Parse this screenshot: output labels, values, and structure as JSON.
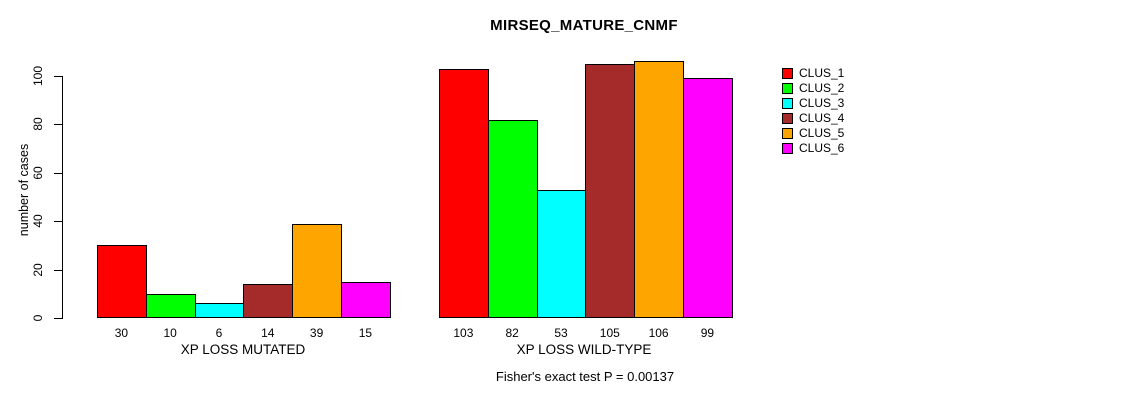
{
  "chart_data": {
    "type": "bar",
    "title": "MIRSEQ_MATURE_CNMF",
    "ylabel": "number of cases",
    "footer": "Fisher's exact test P = 0.00137",
    "ylim": [
      0,
      100
    ],
    "yticks": [
      0,
      20,
      40,
      60,
      80,
      100
    ],
    "grid": false,
    "legend_position": "right",
    "bar_value_labels": true,
    "series_names": [
      "CLUS_1",
      "CLUS_2",
      "CLUS_3",
      "CLUS_4",
      "CLUS_5",
      "CLUS_6"
    ],
    "colors": [
      "#ff0000",
      "#00ff00",
      "#00ffff",
      "#a52a2a",
      "#ffa500",
      "#ff00ff"
    ],
    "groups": [
      {
        "label": "XP LOSS MUTATED",
        "values": [
          30,
          10,
          6,
          14,
          39,
          15
        ]
      },
      {
        "label": "XP LOSS WILD-TYPE",
        "values": [
          103,
          82,
          53,
          105,
          106,
          99
        ]
      }
    ]
  }
}
